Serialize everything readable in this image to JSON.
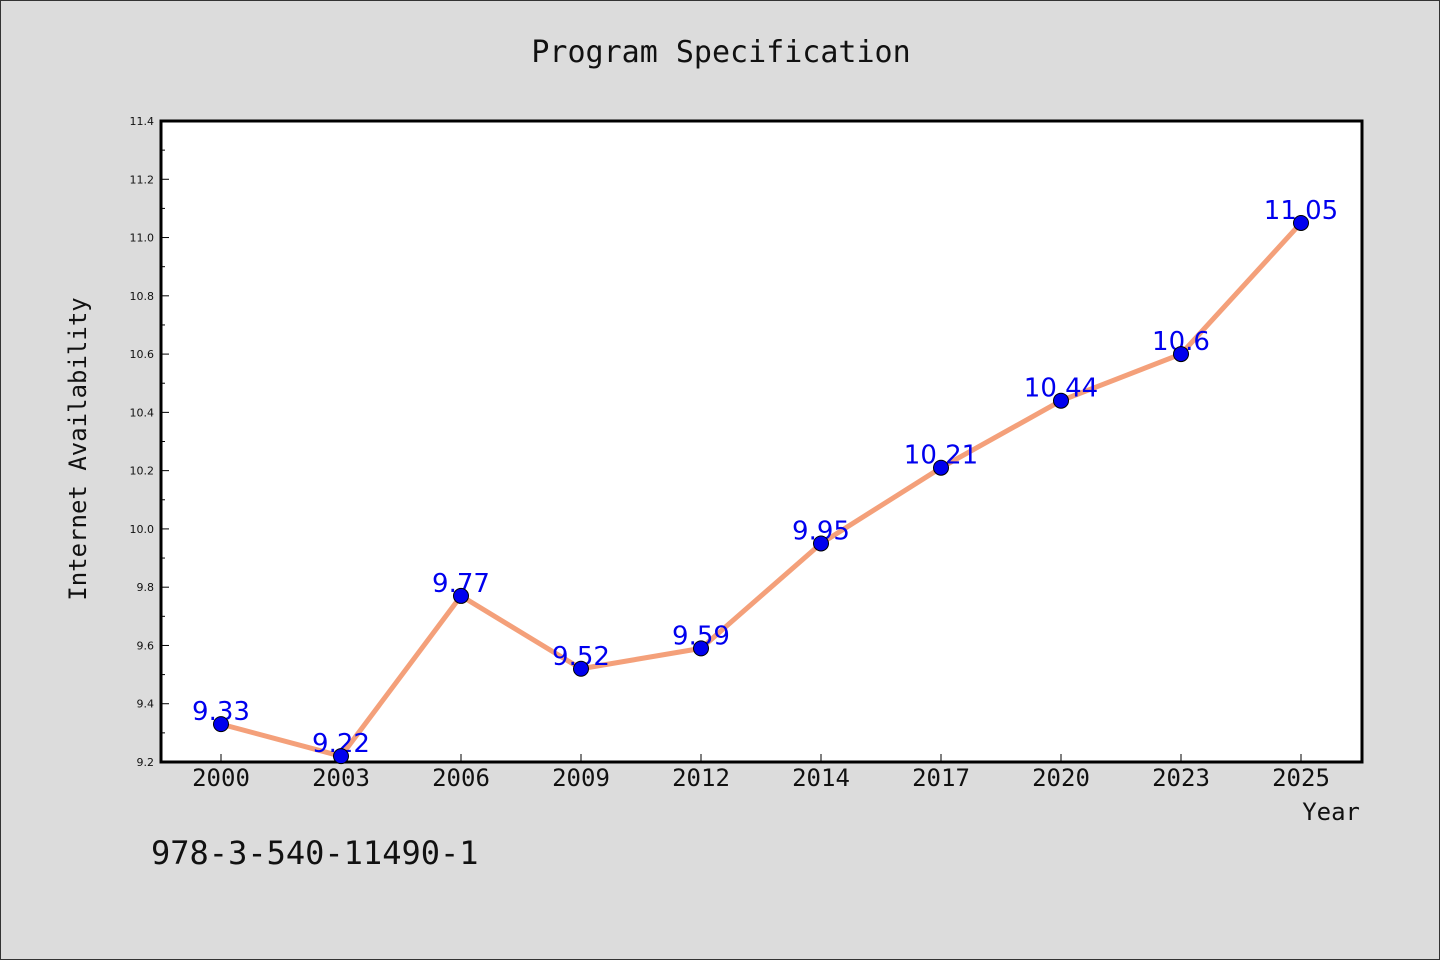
{
  "title": "Program Specification",
  "footer_text": "978-3-540-11490-1",
  "chart_data": {
    "type": "line",
    "title": "Program Specification",
    "xlabel": "Year",
    "ylabel": "Internet Availability",
    "categories": [
      "2000",
      "2003",
      "2006",
      "2009",
      "2012",
      "2014",
      "2017",
      "2020",
      "2023",
      "2025"
    ],
    "series": [
      {
        "values": [
          9.33,
          9.22,
          9.77,
          9.52,
          9.59,
          9.95,
          10.21,
          10.44,
          10.6,
          11.05
        ],
        "data_labels": [
          "9.33",
          "9.22",
          "9.77",
          "9.52",
          "9.59",
          "9.95",
          "10.21",
          "10.44",
          "10.6",
          "11.05"
        ],
        "line_color": "#f4a07a",
        "marker_color": "#0000ee",
        "label_color": "#0000ee"
      }
    ],
    "ylim": [
      9.2,
      11.4
    ],
    "yticks": [
      "9.2",
      "9.4",
      "9.6",
      "9.8",
      "10.0",
      "10.2",
      "10.4",
      "10.6",
      "10.8",
      "11.0",
      "11.2",
      "11.4"
    ],
    "grid": false,
    "legend": "none"
  }
}
